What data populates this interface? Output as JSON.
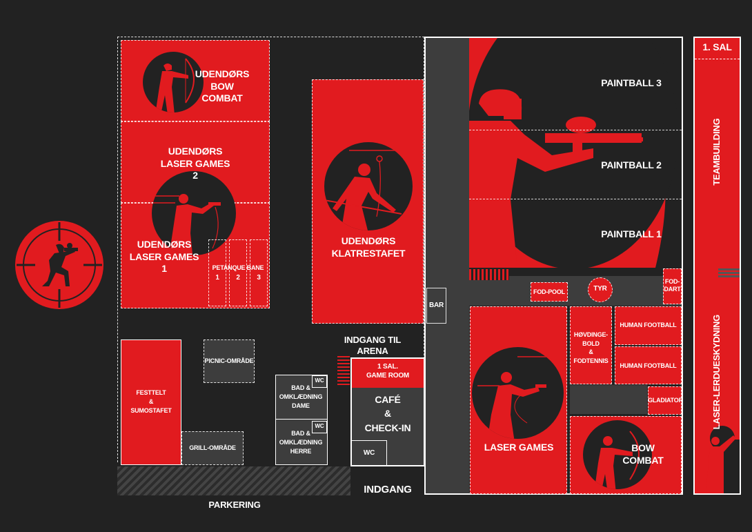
{
  "labels": {
    "bow_combat_outdoor": "UDENDØRS\nBOW COMBAT",
    "laser_games_2": "UDENDØRS\nLASER GAMES\n2",
    "laser_games_1": "UDENDØRS\nLASER GAMES\n1",
    "petanque": "PETANQUE BANE",
    "petanque_1": "1",
    "petanque_2": "2",
    "petanque_3": "3",
    "klatrestafet": "UDENDØRS\nKLATRESTAFET",
    "paintball_3": "PAINTBALL 3",
    "paintball_2": "PAINTBALL 2",
    "paintball_1": "PAINTBALL 1",
    "first_floor": "1. SAL",
    "teambuilding": "TEAMBUILDING",
    "laser_lerdue": "LASER-LERDUESKYDNING",
    "bar": "BAR",
    "fod_pool": "FOD-POOL",
    "tyr": "TYR",
    "fod_dart": "FOD-\nDART",
    "hovdingebold": "HØVDINGE-\nBOLD\n&\nFODTENNIS",
    "human_football_1": "HUMAN FOOTBALL",
    "human_football_2": "HUMAN FOOTBALL",
    "gladiator": "GLADIATOR",
    "laser_games": "LASER GAMES",
    "bow_combat": "BOW COMBAT",
    "entrance_arena": "INDGANG TIL ARENA",
    "game_room": "1 SAL.\nGAME ROOM",
    "cafe": "CAFÉ\n&\nCHECK-IN",
    "wc_cafe": "WC",
    "entrance": "INDGANG",
    "bad_dame": "BAD &\nOMKLÆDNING\nDAME",
    "bad_herre": "BAD &\nOMKLÆDNING\nHERRE",
    "wc_dame": "WC",
    "wc_herre": "WC",
    "picnic": "PICNIC-OMRÅDE",
    "festtelt": "FESTTELT\n&\nSUMOSTAFET",
    "grill": "GRILL-OMRÅDE",
    "parkering": "PARKERING"
  },
  "colors": {
    "red": "#e11b1f",
    "dark": "#222222",
    "grey": "#3d3d3d",
    "white": "#ffffff"
  },
  "icons": {
    "logo": "kneeling-paintball-player-crosshair-icon",
    "archer": "archer-icon",
    "laser_shooter": "laser-shooter-icon",
    "climber": "climber-icon",
    "paintball_player": "paintball-player-icon",
    "skeet_shooter": "skeet-shooter-icon"
  }
}
